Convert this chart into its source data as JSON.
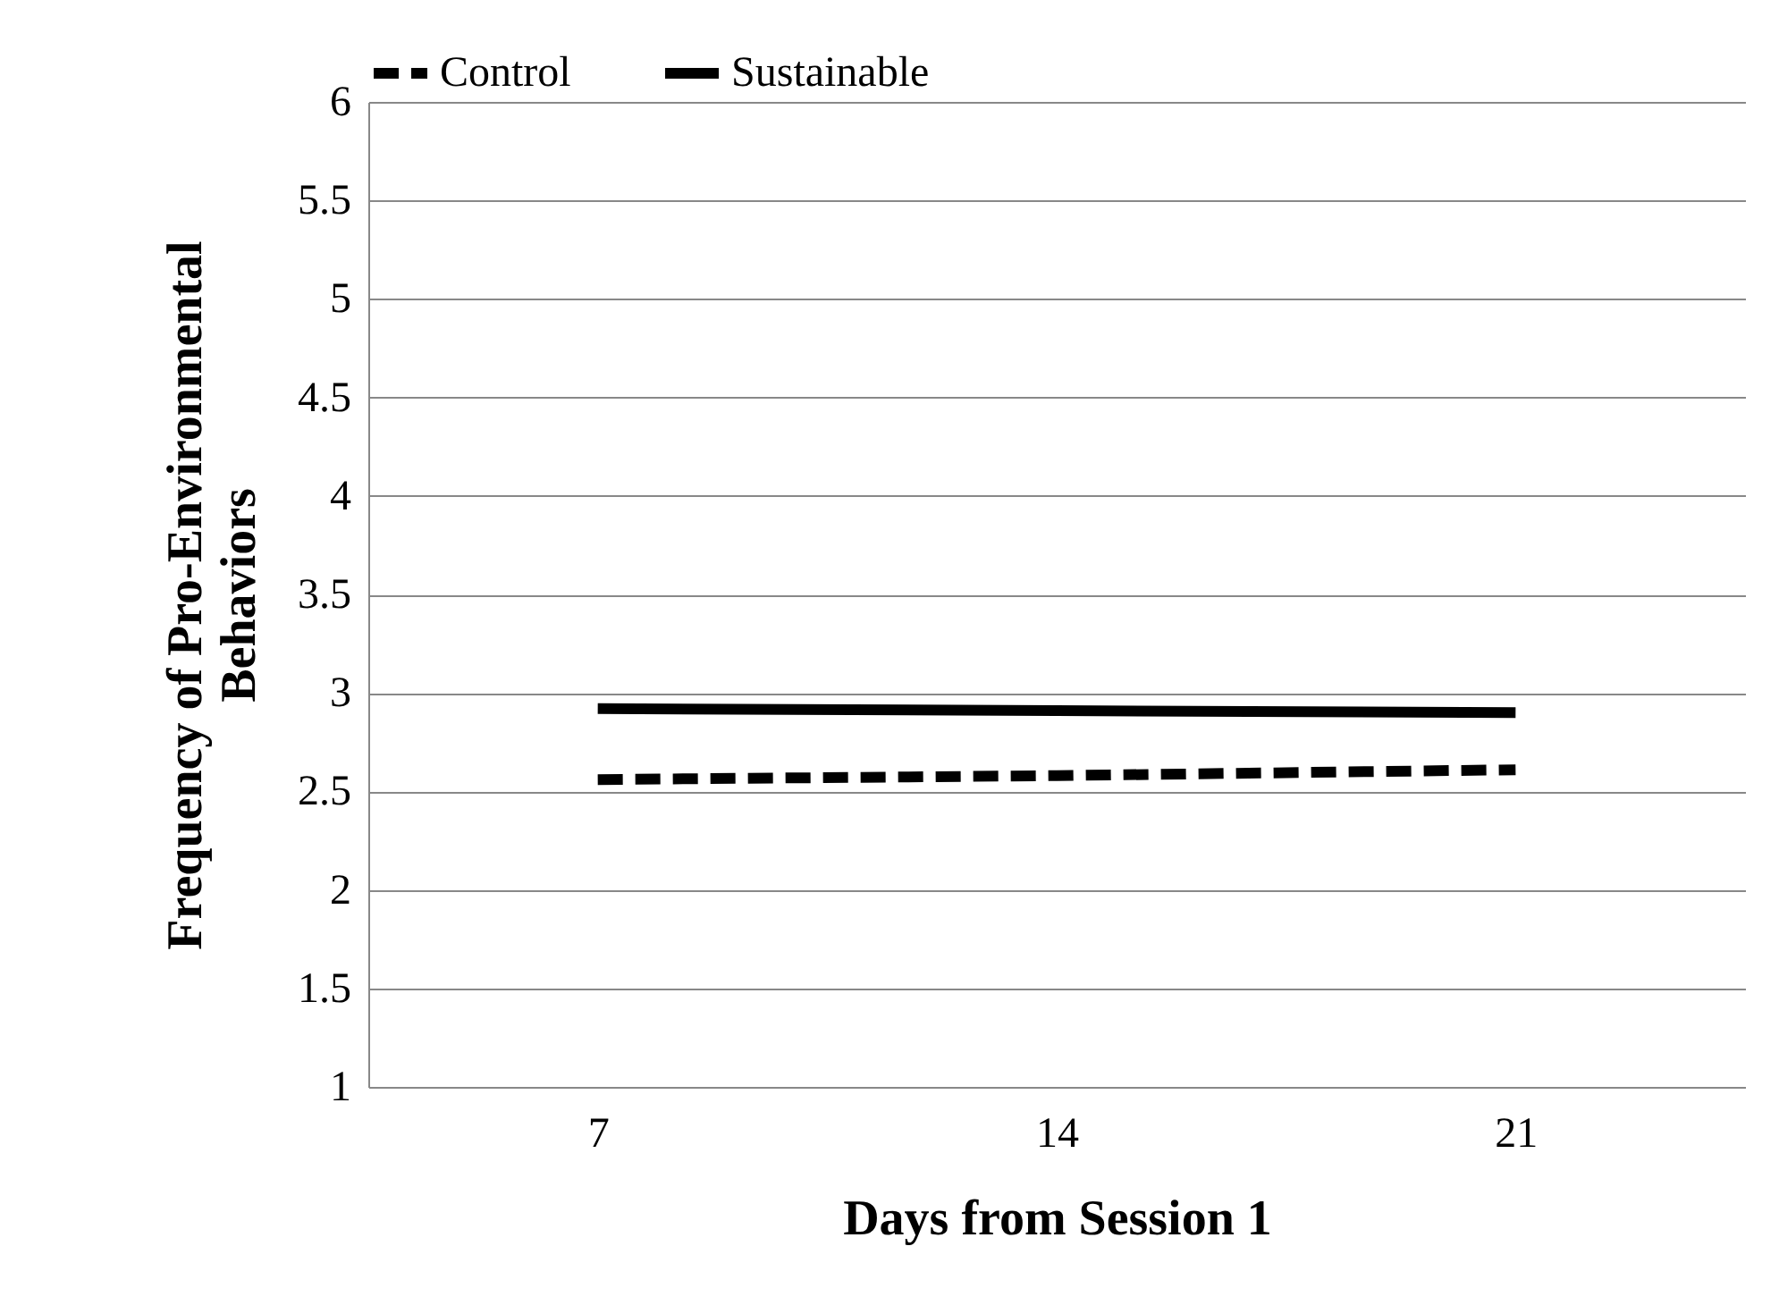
{
  "chart_data": {
    "type": "line",
    "xlabel": "Days from Session 1",
    "ylabel": "Frequency of Pro-Environmental Behaviors",
    "categories": [
      "7",
      "14",
      "21"
    ],
    "series": [
      {
        "name": "Control",
        "color": "#000000",
        "line_style": "dashed",
        "values": [
          2.56,
          2.58,
          2.61
        ]
      },
      {
        "name": "Sustainable",
        "color": "#000000",
        "line_style": "solid",
        "values": [
          2.92,
          2.91,
          2.9
        ]
      }
    ],
    "ylim": [
      1,
      6
    ],
    "yticks": [
      1,
      1.5,
      2,
      2.5,
      3,
      3.5,
      4,
      4.5,
      5,
      5.5,
      6
    ],
    "grid": "y",
    "legend": "top"
  }
}
